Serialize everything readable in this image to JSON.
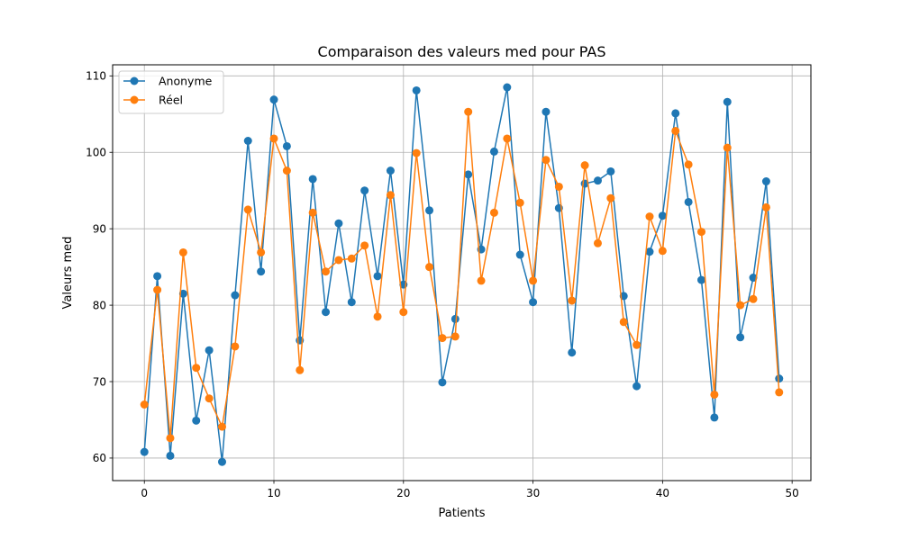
{
  "chart_data": {
    "type": "line",
    "title": "Comparaison des valeurs med pour PAS",
    "xlabel": "Patients",
    "ylabel": "Valeurs med",
    "xlim": [
      -2.45,
      51.45
    ],
    "ylim": [
      57.05,
      111.45
    ],
    "x_ticks": [
      0,
      10,
      20,
      30,
      40,
      50
    ],
    "y_ticks": [
      60,
      70,
      80,
      90,
      100,
      110
    ],
    "grid": true,
    "legend_position": "top-left",
    "x": [
      0,
      1,
      2,
      3,
      4,
      5,
      6,
      7,
      8,
      9,
      10,
      11,
      12,
      13,
      14,
      15,
      16,
      17,
      18,
      19,
      20,
      21,
      22,
      23,
      24,
      25,
      26,
      27,
      28,
      29,
      30,
      31,
      32,
      33,
      34,
      35,
      36,
      37,
      38,
      39,
      40,
      41,
      42,
      43,
      44,
      45,
      46,
      47,
      48,
      49
    ],
    "series": [
      {
        "name": "Anonyme",
        "color": "#1f77b4",
        "values": [
          60.8,
          83.8,
          60.3,
          81.5,
          64.9,
          74.1,
          59.5,
          81.3,
          101.5,
          84.4,
          106.9,
          100.8,
          75.4,
          96.5,
          79.1,
          90.7,
          80.4,
          95.0,
          83.8,
          97.6,
          82.7,
          108.1,
          92.4,
          69.9,
          78.2,
          97.1,
          87.3,
          100.1,
          108.5,
          86.6,
          80.4,
          105.3,
          92.7,
          73.8,
          95.9,
          96.3,
          97.5,
          81.2,
          69.4,
          87.0,
          91.7,
          105.1,
          93.5,
          83.3,
          65.3,
          106.6,
          75.8,
          83.6,
          96.2,
          70.4
        ]
      },
      {
        "name": "Réel",
        "color": "#ff7f0e",
        "values": [
          67.0,
          82.0,
          62.6,
          86.9,
          71.8,
          67.8,
          64.1,
          74.6,
          92.5,
          86.9,
          101.8,
          97.6,
          71.5,
          92.1,
          84.4,
          85.9,
          86.1,
          87.8,
          78.5,
          94.4,
          79.1,
          99.9,
          85.0,
          75.7,
          75.9,
          105.3,
          83.2,
          92.1,
          101.8,
          93.4,
          83.2,
          99.0,
          95.5,
          80.6,
          98.3,
          88.1,
          94.0,
          77.8,
          74.8,
          91.6,
          87.1,
          102.8,
          98.4,
          89.6,
          68.3,
          100.6,
          80.0,
          80.8,
          92.8,
          68.6
        ]
      }
    ]
  }
}
